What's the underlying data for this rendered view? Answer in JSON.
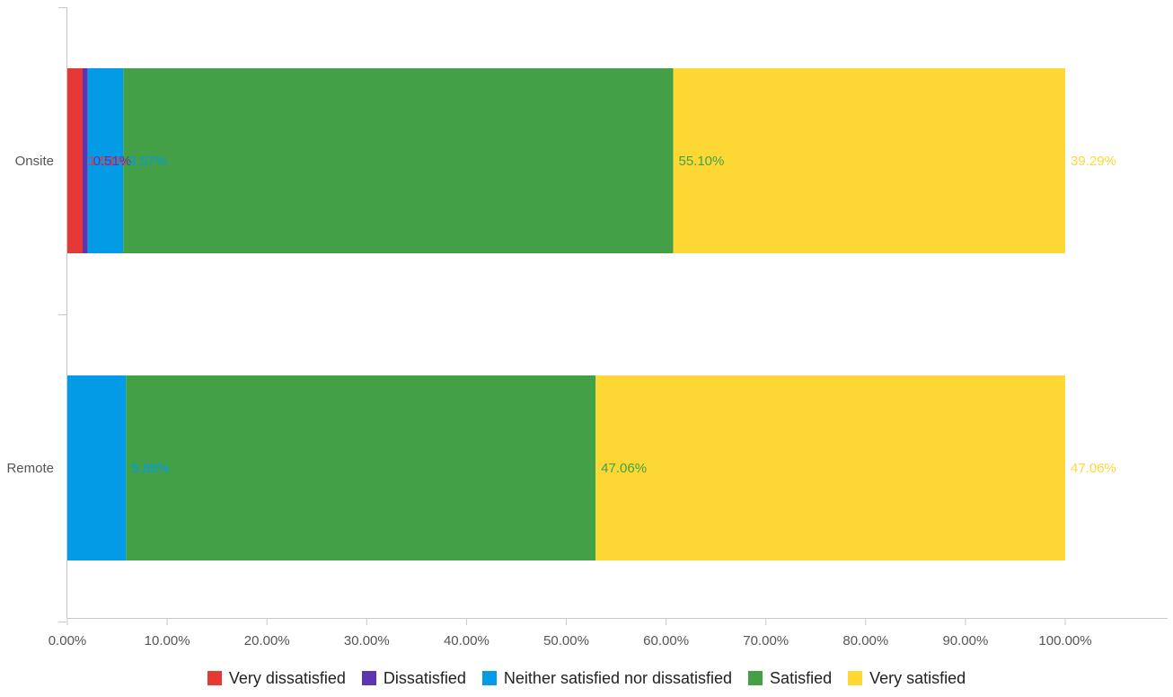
{
  "chart_data": {
    "type": "bar",
    "orientation": "horizontal",
    "stacked": true,
    "title": "",
    "xlabel": "",
    "ylabel": "",
    "xlim": [
      0,
      100
    ],
    "x_ticks": [
      "0.00%",
      "10.00%",
      "20.00%",
      "30.00%",
      "40.00%",
      "50.00%",
      "60.00%",
      "70.00%",
      "80.00%",
      "90.00%",
      "100.00%"
    ],
    "grid": false,
    "legend_position": "bottom",
    "categories": [
      "Onsite",
      "Remote"
    ],
    "series": [
      {
        "name": "Very dissatisfied",
        "color": "#e53935",
        "values": [
          1.53,
          0
        ],
        "labels": [
          "1.53%",
          ""
        ]
      },
      {
        "name": "Dissatisfied",
        "color": "#5e35b1",
        "values": [
          0.51,
          0
        ],
        "labels": [
          "0.51%",
          ""
        ]
      },
      {
        "name": "Neither satisfied nor dissatisfied",
        "color": "#039be5",
        "values": [
          3.57,
          5.88
        ],
        "labels": [
          "3.57%",
          "5.88%"
        ]
      },
      {
        "name": "Satisfied",
        "color": "#43a047",
        "values": [
          55.1,
          47.06
        ],
        "labels": [
          "55.10%",
          "47.06%"
        ]
      },
      {
        "name": "Very satisfied",
        "color": "#fdd835",
        "values": [
          39.29,
          47.06
        ],
        "labels": [
          "39.29%",
          "47.06%"
        ]
      }
    ]
  }
}
